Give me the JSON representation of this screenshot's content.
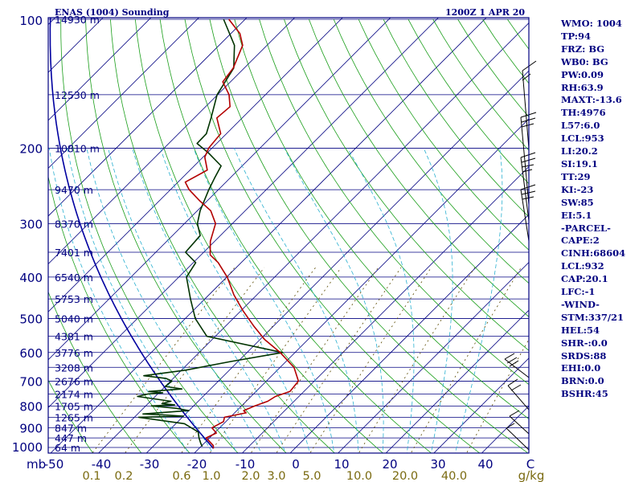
{
  "header": {
    "title": "ENAS (1004) Sounding",
    "valid_time": "1200Z  1 APR 20"
  },
  "chart_data": {
    "type": "line",
    "title": "ENAS (1004) Sounding",
    "diagram": "Skew-T log-P",
    "valid_time": "1200Z  1 APR 20",
    "pressure_unit": "mb",
    "mixing_ratio_unit": "g/kg",
    "pressure_ticks": [
      {
        "p": 100,
        "label": "100"
      },
      {
        "p": 200,
        "label": "200"
      },
      {
        "p": 300,
        "label": "300"
      },
      {
        "p": 400,
        "label": "400"
      },
      {
        "p": 500,
        "label": "500"
      },
      {
        "p": 600,
        "label": "600"
      },
      {
        "p": 700,
        "label": "700"
      },
      {
        "p": 800,
        "label": "800"
      },
      {
        "p": 900,
        "label": "900"
      },
      {
        "p": 1000,
        "label": "1000"
      }
    ],
    "height_labels": [
      {
        "p": 100,
        "label": "14930 m"
      },
      {
        "p": 150,
        "label": "12530 m"
      },
      {
        "p": 200,
        "label": "10810 m"
      },
      {
        "p": 250,
        "label": "9470 m"
      },
      {
        "p": 300,
        "label": "8370 m"
      },
      {
        "p": 350,
        "label": "7401 m"
      },
      {
        "p": 400,
        "label": "6540 m"
      },
      {
        "p": 450,
        "label": "5753 m"
      },
      {
        "p": 500,
        "label": "5040 m"
      },
      {
        "p": 550,
        "label": "4381 m"
      },
      {
        "p": 600,
        "label": "3776 m"
      },
      {
        "p": 650,
        "label": "3208 m"
      },
      {
        "p": 700,
        "label": "2676 m"
      },
      {
        "p": 750,
        "label": "2174 m"
      },
      {
        "p": 800,
        "label": "1705 m"
      },
      {
        "p": 850,
        "label": "1265 m"
      },
      {
        "p": 900,
        "label": "847 m"
      },
      {
        "p": 950,
        "label": "447 m"
      },
      {
        "p": 1000,
        "label": "64 m"
      }
    ],
    "temperature_ticks": [
      "-50",
      "-40",
      "-30",
      "-20",
      "-10",
      "0",
      "10",
      "20",
      "30",
      "40",
      "C"
    ],
    "mixing_ratio_ticks": [
      {
        "w": 0.1,
        "label": "0.1"
      },
      {
        "w": 0.2,
        "label": "0.2"
      },
      {
        "w": 0.6,
        "label": "0.6"
      },
      {
        "w": 1.0,
        "label": "1.0"
      },
      {
        "w": 2.0,
        "label": "2.0"
      },
      {
        "w": 3.0,
        "label": "3.0"
      },
      {
        "w": 5.0,
        "label": "5.0"
      },
      {
        "w": 10.0,
        "label": "10.0"
      },
      {
        "w": 20.0,
        "label": "20.0"
      },
      {
        "w": 40.0,
        "label": "40.0"
      }
    ],
    "temperature_profile": [
      [
        1005,
        -17
      ],
      [
        990,
        -17.6
      ],
      [
        950,
        -20.7
      ],
      [
        925,
        -19.6
      ],
      [
        900,
        -21.6
      ],
      [
        870,
        -20.5
      ],
      [
        850,
        -21.2
      ],
      [
        830,
        -17.6
      ],
      [
        820,
        -18.6
      ],
      [
        800,
        -17.2
      ],
      [
        780,
        -15.5
      ],
      [
        760,
        -14.9
      ],
      [
        740,
        -12.9
      ],
      [
        700,
        -13.3
      ],
      [
        650,
        -17.1
      ],
      [
        600,
        -23.1
      ],
      [
        560,
        -29.0
      ],
      [
        520,
        -34.2
      ],
      [
        480,
        -39.5
      ],
      [
        440,
        -44.8
      ],
      [
        400,
        -49.9
      ],
      [
        370,
        -54.8
      ],
      [
        355,
        -58.1
      ],
      [
        330,
        -60.9
      ],
      [
        300,
        -63.5
      ],
      [
        280,
        -67.2
      ],
      [
        265,
        -71.7
      ],
      [
        250,
        -76.1
      ],
      [
        240,
        -78.5
      ],
      [
        225,
        -76.4
      ],
      [
        210,
        -79.6
      ],
      [
        200,
        -80.7
      ],
      [
        185,
        -81.2
      ],
      [
        170,
        -85.3
      ],
      [
        160,
        -84.9
      ],
      [
        150,
        -87.6
      ],
      [
        140,
        -91.6
      ],
      [
        130,
        -92.3
      ],
      [
        115,
        -95.1
      ],
      [
        108,
        -98.1
      ],
      [
        100,
        -103.4
      ]
    ],
    "dewpoint_profile": [
      [
        995,
        -19.7
      ],
      [
        980,
        -20.6
      ],
      [
        950,
        -22.2
      ],
      [
        920,
        -23.6
      ],
      [
        880,
        -28.2
      ],
      [
        850,
        -39.1
      ],
      [
        845,
        -30.0
      ],
      [
        840,
        -34.3
      ],
      [
        835,
        -38.9
      ],
      [
        820,
        -30.0
      ],
      [
        810,
        -33.2
      ],
      [
        800,
        -38.8
      ],
      [
        795,
        -34.2
      ],
      [
        790,
        -37.1
      ],
      [
        780,
        -35.7
      ],
      [
        760,
        -43.7
      ],
      [
        750,
        -42.0
      ],
      [
        745,
        -39.2
      ],
      [
        740,
        -42.4
      ],
      [
        730,
        -36.0
      ],
      [
        720,
        -40.0
      ],
      [
        700,
        -39.7
      ],
      [
        690,
        -41.5
      ],
      [
        680,
        -46.7
      ],
      [
        660,
        -39.2
      ],
      [
        630,
        -31.5
      ],
      [
        600,
        -22.6
      ],
      [
        550,
        -41.8
      ],
      [
        500,
        -47.9
      ],
      [
        450,
        -53.0
      ],
      [
        400,
        -58.4
      ],
      [
        370,
        -59.5
      ],
      [
        350,
        -63.8
      ],
      [
        320,
        -64.2
      ],
      [
        300,
        -67.3
      ],
      [
        280,
        -69.4
      ],
      [
        250,
        -72.0
      ],
      [
        235,
        -73.2
      ],
      [
        220,
        -74.4
      ],
      [
        205,
        -79.8
      ],
      [
        195,
        -84.1
      ],
      [
        185,
        -84.2
      ],
      [
        170,
        -86.5
      ],
      [
        150,
        -90.1
      ],
      [
        130,
        -92.2
      ],
      [
        115,
        -96.8
      ],
      [
        100,
        -104.5
      ]
    ]
  },
  "indices": [
    "WMO: 1004",
    "TP:94",
    "FRZ: BG",
    "WB0: BG",
    "PW:0.09",
    "RH:63.9",
    "MAXT:-13.6",
    "TH:4976",
    "L57:6.0",
    "LCL:953",
    "LI:20.2",
    "SI:19.1",
    "TT:29",
    "KI:-23",
    "SW:85",
    "EI:5.1",
    "-PARCEL-",
    "CAPE:2",
    "CINH:68604",
    "LCL:932",
    "CAP:20.1",
    "LFC:-1",
    "-WIND-",
    "STM:337/21",
    "HEL:54",
    "SHR-:0.0",
    "SRDS:88",
    "EHI:0.0",
    "BRN:0.0",
    "BSHR:45"
  ],
  "colors": {
    "frame": "#000080",
    "isobar": "#000080",
    "isotherm": "#000080",
    "dry_adiabat": "#1a9e1a",
    "moist_adiabat": "#2ab0d0",
    "mixing_ratio": "#5a4a00",
    "temperature": "#b30000",
    "dewpoint": "#003300",
    "parcel": "#0000a0",
    "mixing_ratio_label": "#7a6a10"
  }
}
